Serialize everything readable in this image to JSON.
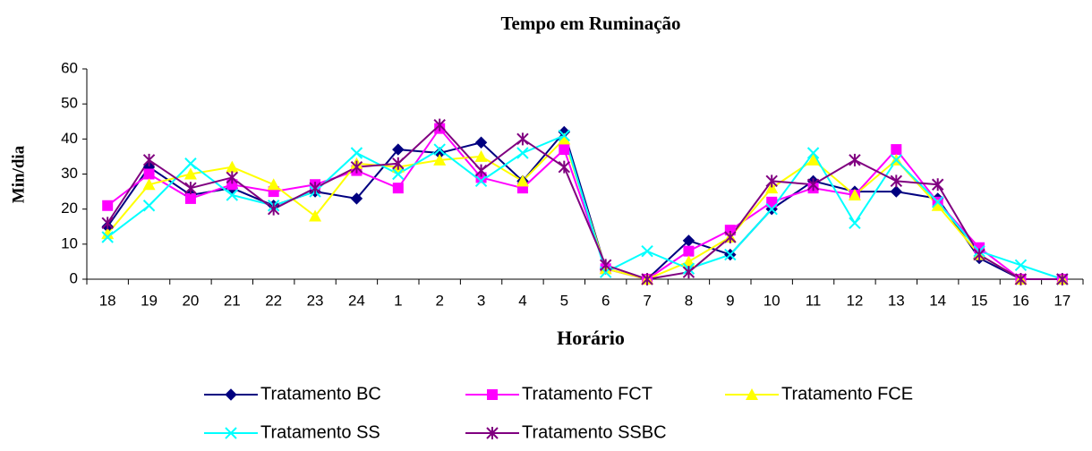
{
  "chart_data": {
    "type": "line",
    "title": "Tempo em Ruminação",
    "x_label": "Horário",
    "y_label": "Min/dia",
    "categories": [
      "18",
      "19",
      "20",
      "21",
      "22",
      "23",
      "24",
      "1",
      "2",
      "3",
      "4",
      "5",
      "6",
      "7",
      "8",
      "9",
      "10",
      "11",
      "12",
      "13",
      "14",
      "15",
      "16",
      "17"
    ],
    "ylim": [
      0,
      60
    ],
    "yticks": [
      0,
      10,
      20,
      30,
      40,
      50,
      60
    ],
    "grid": false,
    "legend": "bottom",
    "series": [
      {
        "name": "Tratamento BC",
        "color": "#000080",
        "marker": "diamond",
        "values": [
          15,
          32,
          24,
          26,
          21,
          25,
          23,
          37,
          36,
          39,
          28,
          42,
          3,
          0,
          11,
          7,
          20,
          28,
          25,
          25,
          23,
          6,
          0,
          0
        ]
      },
      {
        "name": "Tratamento FCT",
        "color": "#ff00ff",
        "marker": "square",
        "values": [
          21,
          30,
          23,
          27,
          25,
          27,
          31,
          26,
          43,
          29,
          26,
          37,
          3,
          0,
          8,
          14,
          22,
          26,
          24,
          37,
          22,
          9,
          0,
          0
        ]
      },
      {
        "name": "Tratamento FCE",
        "color": "#ffff00",
        "marker": "triangle",
        "values": [
          13,
          27,
          30,
          32,
          27,
          18,
          33,
          32,
          34,
          35,
          28,
          40,
          3,
          0,
          5,
          12,
          26,
          34,
          24,
          34,
          21,
          7,
          0,
          0
        ]
      },
      {
        "name": "Tratamento SS",
        "color": "#00ffff",
        "marker": "x",
        "values": [
          12,
          21,
          33,
          24,
          21,
          25,
          36,
          30,
          37,
          28,
          36,
          41,
          2,
          8,
          3,
          7,
          20,
          36,
          16,
          34,
          22,
          8,
          4,
          0
        ]
      },
      {
        "name": "Tratamento SSBC",
        "color": "#800080",
        "marker": "asterisk",
        "values": [
          16,
          34,
          26,
          29,
          20,
          26,
          32,
          33,
          44,
          31,
          40,
          32,
          4,
          0,
          2,
          12,
          28,
          27,
          34,
          28,
          27,
          7,
          0,
          0
        ]
      }
    ]
  }
}
